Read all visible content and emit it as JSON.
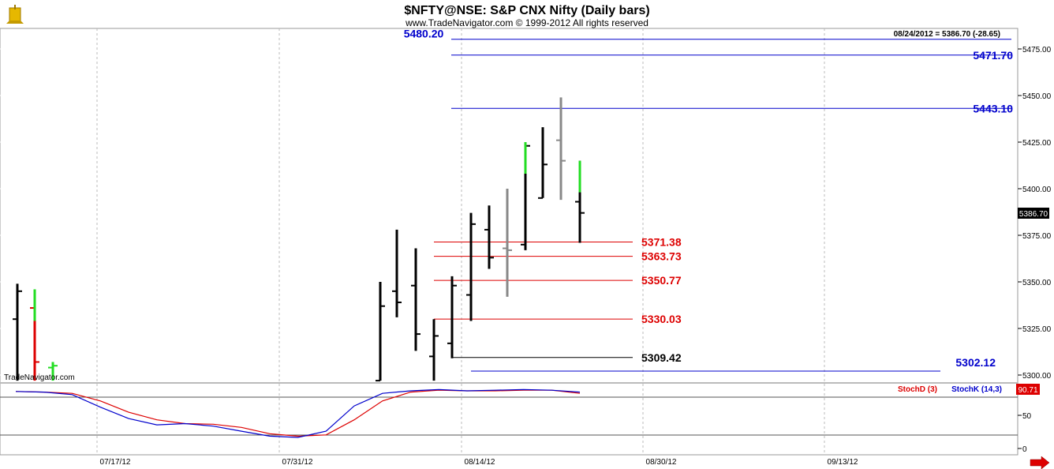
{
  "header": {
    "title": "$NFTY@NSE:  S&P CNX Nifty  (Daily bars)",
    "subtitle": "www.TradeNavigator.com © 1999-2012 All rights reserved",
    "logo_icon": "trade-navigator-logo-icon"
  },
  "last_quote": "08/24/2012 = 5386.70 (-28.65)",
  "price_tag": "5386.70",
  "watermark": "TradeNavigator.com",
  "indicator_tag": "90.71",
  "colors": {
    "blue": "#0000cc",
    "red": "#dd0000",
    "black": "#000000",
    "green": "#22dd22",
    "gray": "#888888"
  },
  "chart_data": {
    "type": "ohlc-bar",
    "title": "$NFTY@NSE:  S&P CNX Nifty  (Daily bars)",
    "y_ticks": [
      "5475.00",
      "5450.00",
      "5425.00",
      "5400.00",
      "5375.00",
      "5350.00",
      "5325.00",
      "5300.00"
    ],
    "ylim": [
      5297,
      5492
    ],
    "x_ticks": [
      "07/17/12",
      "07/31/12",
      "08/14/12",
      "08/30/12",
      "09/13/12"
    ],
    "bars": [
      {
        "o": 5330,
        "h": 5349,
        "l": 5297,
        "c": 5345,
        "color": "black"
      },
      {
        "o": 5336,
        "h": 5346,
        "l": 5297,
        "c": 5307,
        "color": "red",
        "cap": "green"
      },
      {
        "o": 5304,
        "h": 5307,
        "l": 5297,
        "c": 5305,
        "color": "green"
      },
      {
        "o": 5297,
        "h": 5350,
        "l": 5297,
        "c": 5337,
        "color": "black"
      },
      {
        "o": 5345,
        "h": 5378,
        "l": 5331,
        "c": 5339,
        "color": "black"
      },
      {
        "o": 5348,
        "h": 5368,
        "l": 5313,
        "c": 5322,
        "color": "black"
      },
      {
        "o": 5310,
        "h": 5330,
        "l": 5297,
        "c": 5321,
        "color": "black"
      },
      {
        "o": 5317,
        "h": 5353,
        "l": 5309,
        "c": 5348,
        "color": "black"
      },
      {
        "o": 5343,
        "h": 5387,
        "l": 5329,
        "c": 5381,
        "color": "black"
      },
      {
        "o": 5378,
        "h": 5391,
        "l": 5357,
        "c": 5363,
        "color": "black"
      },
      {
        "o": 5368,
        "h": 5400,
        "l": 5342,
        "c": 5367,
        "color": "gray"
      },
      {
        "o": 5370,
        "h": 5425,
        "l": 5367,
        "c": 5423,
        "color": "black",
        "cap": "green"
      },
      {
        "o": 5395,
        "h": 5433,
        "l": 5395,
        "c": 5413,
        "color": "black"
      },
      {
        "o": 5426,
        "h": 5449,
        "l": 5394,
        "c": 5415,
        "color": "gray"
      },
      {
        "o": 5393,
        "h": 5415,
        "l": 5371,
        "c": 5387,
        "color": "black",
        "cap": "green"
      }
    ],
    "levels": [
      {
        "value": "5480.20",
        "color": "blue"
      },
      {
        "value": "5471.70",
        "color": "blue"
      },
      {
        "value": "5443.10",
        "color": "blue"
      },
      {
        "value": "5371.38",
        "color": "red"
      },
      {
        "value": "5363.73",
        "color": "red"
      },
      {
        "value": "5350.77",
        "color": "red"
      },
      {
        "value": "5330.03",
        "color": "red"
      },
      {
        "value": "5309.42",
        "color": "black"
      },
      {
        "value": "5302.12",
        "color": "blue"
      }
    ],
    "stoch": {
      "legend_d": "StochD (3)",
      "legend_k": "StochK (14,3)",
      "y_ticks": [
        "50",
        "0"
      ],
      "ylim": [
        0,
        100
      ],
      "k": [
        93,
        92,
        88,
        68,
        50,
        40,
        42,
        38,
        30,
        22,
        20,
        30,
        70,
        90,
        94,
        96,
        94,
        95,
        96,
        95,
        92
      ],
      "d": [
        93,
        92,
        90,
        78,
        60,
        48,
        42,
        41,
        36,
        26,
        22,
        24,
        48,
        78,
        92,
        95,
        94,
        94,
        95,
        95,
        90
      ]
    }
  }
}
